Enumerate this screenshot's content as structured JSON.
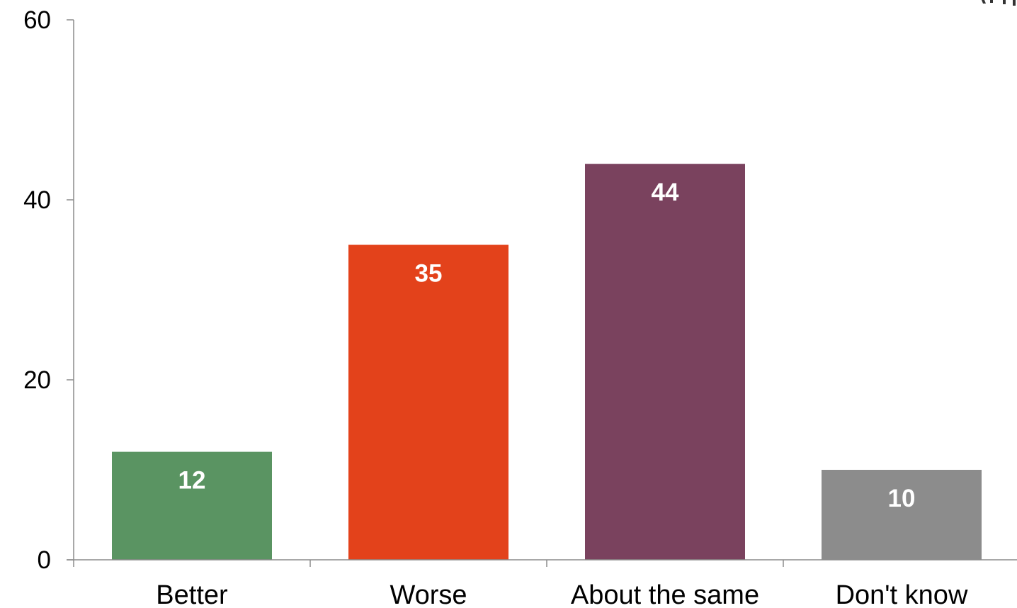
{
  "chart_data": {
    "type": "bar",
    "categories": [
      "Better",
      "Worse",
      "About the same",
      "Don't know"
    ],
    "values": [
      12,
      35,
      44,
      10
    ],
    "data_labels": [
      "12",
      "35",
      "44",
      "10"
    ],
    "colors": [
      "#5a9462",
      "#e3421b",
      "#7a425e",
      "#8c8c8c"
    ],
    "ylim": [
      0,
      60
    ],
    "yticks": [
      0,
      20,
      40,
      60
    ],
    "ytick_labels": [
      "0",
      "20",
      "40",
      "60"
    ],
    "grid": false,
    "legend": "none"
  }
}
